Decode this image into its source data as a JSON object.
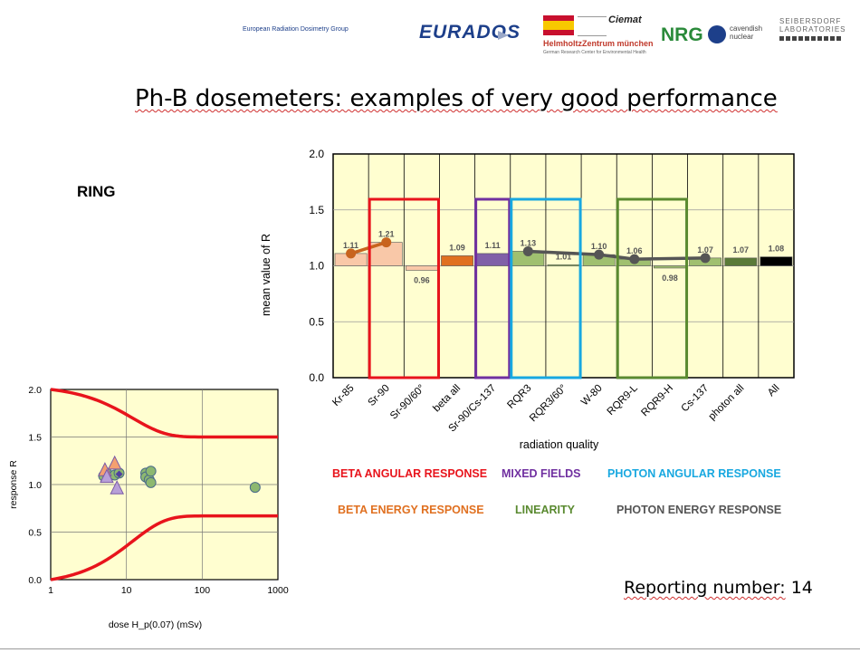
{
  "header": {
    "eurados_small": "European Radiation Dosimetry Group",
    "eurados": "EURADOS",
    "helmholtz": "HelmholtzZentrum münchen",
    "helmholtz_sub": "German Research Center for Environmental Health",
    "ciemat": "Ciemat",
    "nrg": "NRG",
    "cavendish": "cavendish",
    "nuclear": "nuclear",
    "seibersdorf1": "SEIBERSDORF",
    "seibersdorf2": "LABORATORIES"
  },
  "title": "Ph-B dosemeters: examples of very good performance",
  "ring_label": "RING",
  "reporting": {
    "label": "Reporting number:",
    "value": "14"
  },
  "legend": [
    {
      "label": "BETA ANGULAR RESPONSE",
      "color": "#e8141c"
    },
    {
      "label": "MIXED FIELDS",
      "color": "#7030a0"
    },
    {
      "label": "PHOTON ANGULAR RESPONSE",
      "color": "#18a8e0"
    },
    {
      "label": "BETA ENERGY RESPONSE",
      "color": "#e07020"
    },
    {
      "label": "LINEARITY",
      "color": "#5a8a30"
    },
    {
      "label": "PHOTON ENERGY RESPONSE",
      "color": "#555555"
    }
  ],
  "chart_data": [
    {
      "type": "bar",
      "xlabel": "radiation quality",
      "ylabel": "mean  value  of  R",
      "ylim": [
        0,
        2.0
      ],
      "yticks": [
        "0.0",
        "0.5",
        "1.0",
        "1.5",
        "2.0"
      ],
      "baseline": 1.0,
      "categories": [
        "Kr-85",
        "Sr-90",
        "Sr-90/60°",
        "beta all",
        "Sr-90/Cs-137",
        "RQR3",
        "RQR3/60°",
        "W-80",
        "RQR9-L",
        "RQR9-H",
        "Cs-137",
        "photon all",
        "All"
      ],
      "values": [
        1.11,
        1.21,
        0.96,
        1.09,
        1.11,
        1.13,
        1.01,
        1.1,
        1.06,
        0.98,
        1.07,
        1.07,
        1.08
      ],
      "value_labels": [
        "1.11",
        "1.21",
        "0.96",
        "1.09",
        "1.11",
        "1.13",
        "1.01",
        "1.10",
        "1.06",
        "0.98",
        "1.07",
        "1.07",
        "1.08"
      ],
      "bar_colors": [
        "#f9c8a8",
        "#f9c8a8",
        "#f9c8a8",
        "#e07020",
        "#8060a8",
        "#a0c070",
        "#a0c070",
        "#a0c070",
        "#a0c070",
        "#a0c070",
        "#a0c070",
        "#5a7a38",
        "#000000"
      ],
      "lines": [
        {
          "name": "beta energy",
          "color": "#c8641e",
          "indices": [
            0,
            1
          ]
        },
        {
          "name": "photon energy",
          "color": "#555555",
          "indices": [
            5,
            7,
            8,
            10
          ]
        }
      ],
      "boxes": [
        {
          "group": "beta angular",
          "color": "#e8141c",
          "from": 1,
          "to": 2
        },
        {
          "group": "mixed fields",
          "color": "#7030a0",
          "from": 4,
          "to": 4
        },
        {
          "group": "photon angular",
          "color": "#18a8e0",
          "from": 5,
          "to": 6
        },
        {
          "group": "linearity",
          "color": "#5a8a30",
          "from": 8,
          "to": 9
        }
      ],
      "background": "#fffed0"
    },
    {
      "type": "scatter",
      "xlabel": "dose H_p(0.07) (mSv)",
      "ylabel": "response  R",
      "xscale": "log",
      "xlim": [
        1,
        1000
      ],
      "ylim": [
        0,
        2.0
      ],
      "xticks": [
        "1",
        "10",
        "100",
        "1000"
      ],
      "yticks": [
        "0.0",
        "0.5",
        "1.0",
        "1.5",
        "2.0"
      ],
      "limit_curves": {
        "color": "#e8141c",
        "upper_asymptote": 1.5,
        "lower_asymptote": 0.67,
        "at_x1": [
          2.0,
          0.0
        ]
      },
      "circles": {
        "color": "#8db870",
        "points": [
          [
            5,
            1.09
          ],
          [
            5.5,
            1.12
          ],
          [
            7,
            1.1
          ],
          [
            8,
            1.12
          ],
          [
            18,
            1.12
          ],
          [
            18,
            1.08
          ],
          [
            20,
            1.05
          ],
          [
            21,
            1.14
          ],
          [
            21,
            1.02
          ],
          [
            500,
            0.97
          ]
        ]
      },
      "triangles_orange": {
        "color": "#f4a070",
        "points": [
          [
            5.2,
            1.15
          ],
          [
            7,
            1.22
          ]
        ]
      },
      "triangles_purple": {
        "color": "#b8a0d8",
        "points": [
          [
            5.5,
            1.08
          ],
          [
            7.5,
            0.96
          ]
        ]
      },
      "diamond": {
        "color": "#5040a0",
        "points": [
          [
            8,
            1.11
          ]
        ]
      },
      "background": "#fffed0"
    }
  ]
}
